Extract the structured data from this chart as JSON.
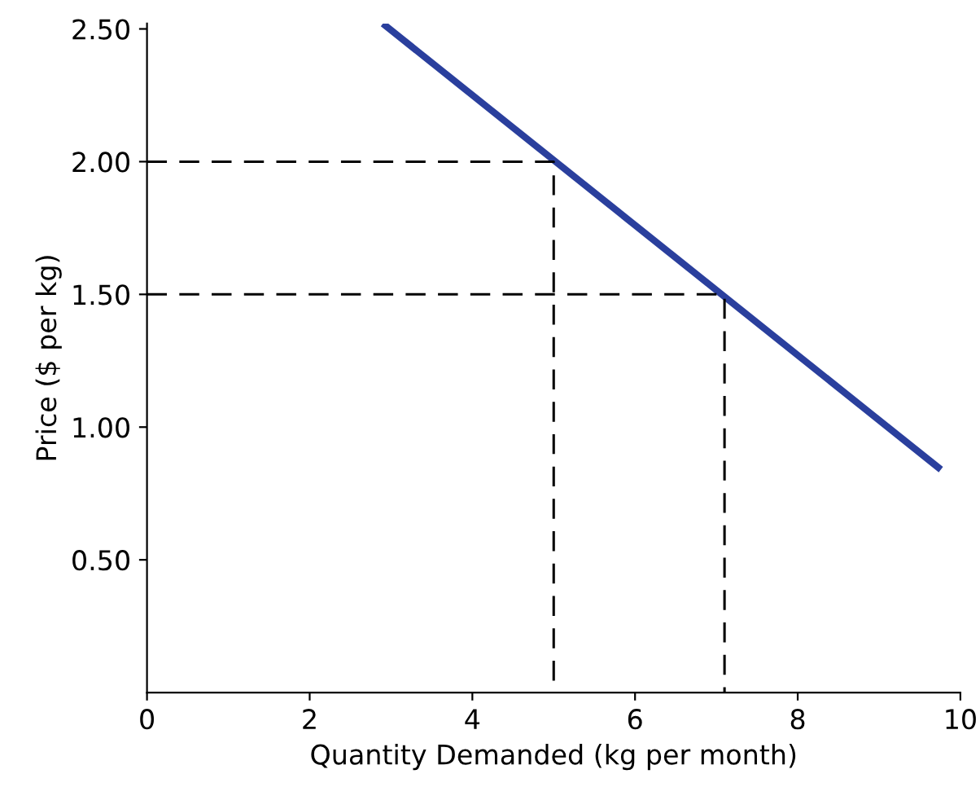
{
  "chart_data": {
    "type": "line",
    "xlabel": "Quantity Demanded (kg per month)",
    "ylabel": "Price ($ per kg)",
    "xlim": [
      0,
      10
    ],
    "ylim": [
      0,
      2.52
    ],
    "xticks": [
      0,
      2,
      4,
      6,
      8,
      10
    ],
    "yticks": [
      {
        "value": 0.5,
        "label": "0.50"
      },
      {
        "value": 1.0,
        "label": "1.00"
      },
      {
        "value": 1.5,
        "label": "1.50"
      },
      {
        "value": 2.0,
        "label": "2.00"
      },
      {
        "value": 2.5,
        "label": "2.50"
      }
    ],
    "grid": false,
    "legend": false,
    "marker": "none",
    "series": [
      {
        "color": "#2a3f9d",
        "x": [
          2.9,
          9.76
        ],
        "values": [
          2.52,
          0.84
        ],
        "line_style": "solid"
      },
      {
        "color": "#000000",
        "x": [
          0,
          5,
          5
        ],
        "values": [
          2.0,
          2.0,
          0
        ],
        "line_style": "dashed"
      },
      {
        "color": "#000000",
        "x": [
          0,
          7.1,
          7.1
        ],
        "values": [
          1.5,
          1.5,
          0
        ],
        "line_style": "dashed"
      }
    ]
  }
}
